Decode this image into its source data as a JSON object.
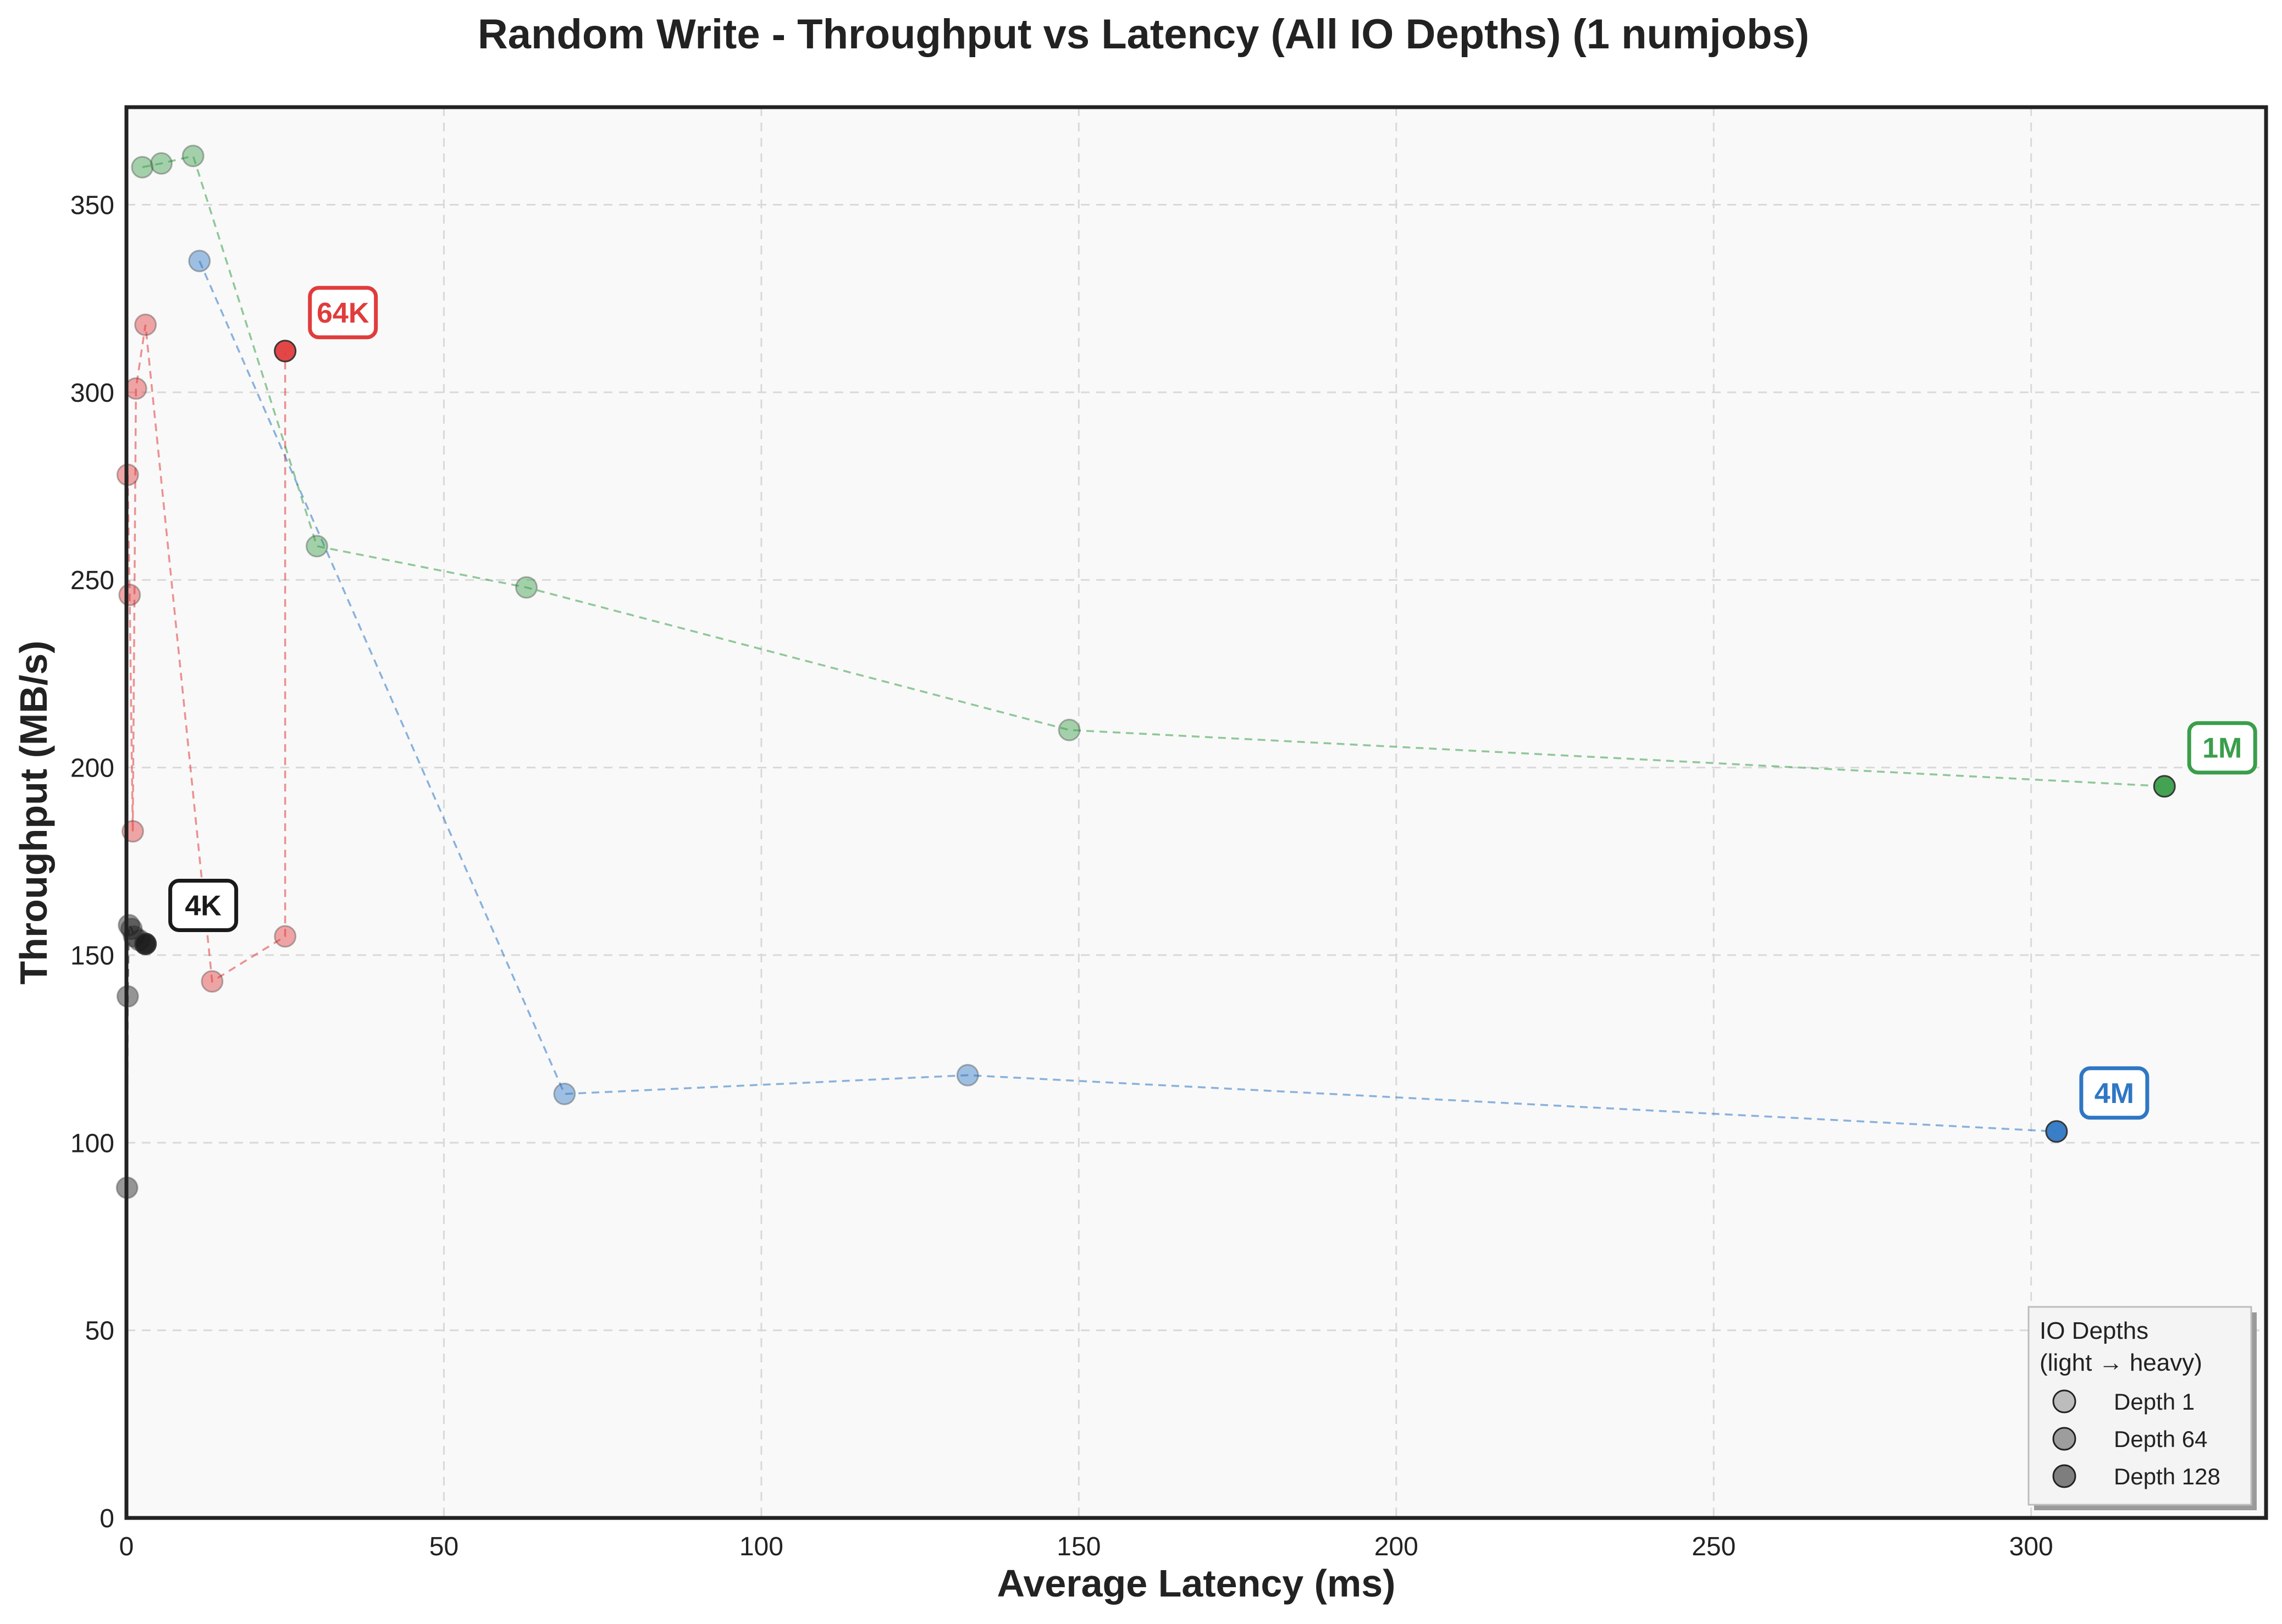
{
  "chart_data": {
    "type": "scatter",
    "title": "Random Write - Throughput vs Latency (All IO Depths) (1 numjobs)",
    "xlabel": "Average Latency (ms)",
    "ylabel": "Throughput (MB/s)",
    "xlim": [
      0,
      337
    ],
    "ylim": [
      0,
      376
    ],
    "xticks": [
      0,
      50,
      100,
      150,
      200,
      250,
      300
    ],
    "yticks": [
      0,
      50,
      100,
      150,
      200,
      250,
      300,
      350
    ],
    "grid": true,
    "series": [
      {
        "name": "4K",
        "color": "#1a1a1a",
        "points": [
          [
            0.1,
            88
          ],
          [
            0.2,
            139
          ],
          [
            0.4,
            158
          ],
          [
            0.8,
            157
          ],
          [
            1.2,
            155
          ],
          [
            2.0,
            154
          ],
          [
            3.0,
            153
          ]
        ]
      },
      {
        "name": "64K",
        "color": "#e03c3c",
        "points": [
          [
            0.2,
            278
          ],
          [
            0.5,
            246
          ],
          [
            1.0,
            183
          ],
          [
            1.5,
            301
          ],
          [
            3.0,
            318
          ],
          [
            13.5,
            143
          ],
          [
            25.0,
            155
          ],
          [
            25.0,
            311
          ]
        ]
      },
      {
        "name": "1M",
        "color": "#3a9e4a",
        "points": [
          [
            2.5,
            360
          ],
          [
            5.5,
            361
          ],
          [
            10.5,
            363
          ],
          [
            30.0,
            259
          ],
          [
            63.0,
            248
          ],
          [
            148.5,
            210
          ],
          [
            321.0,
            195
          ]
        ]
      },
      {
        "name": "4M",
        "color": "#2f77c4",
        "points": [
          [
            11.5,
            335
          ],
          [
            69.0,
            113
          ],
          [
            132.5,
            118
          ],
          [
            304.0,
            103
          ]
        ]
      }
    ],
    "legend": {
      "title_line1": "IO Depths",
      "title_line2": "(light → heavy)",
      "placement": "lower-right",
      "items": [
        "Depth 1",
        "Depth 64",
        "Depth 128"
      ],
      "alphas": [
        0.45,
        0.7,
        0.95
      ]
    }
  }
}
